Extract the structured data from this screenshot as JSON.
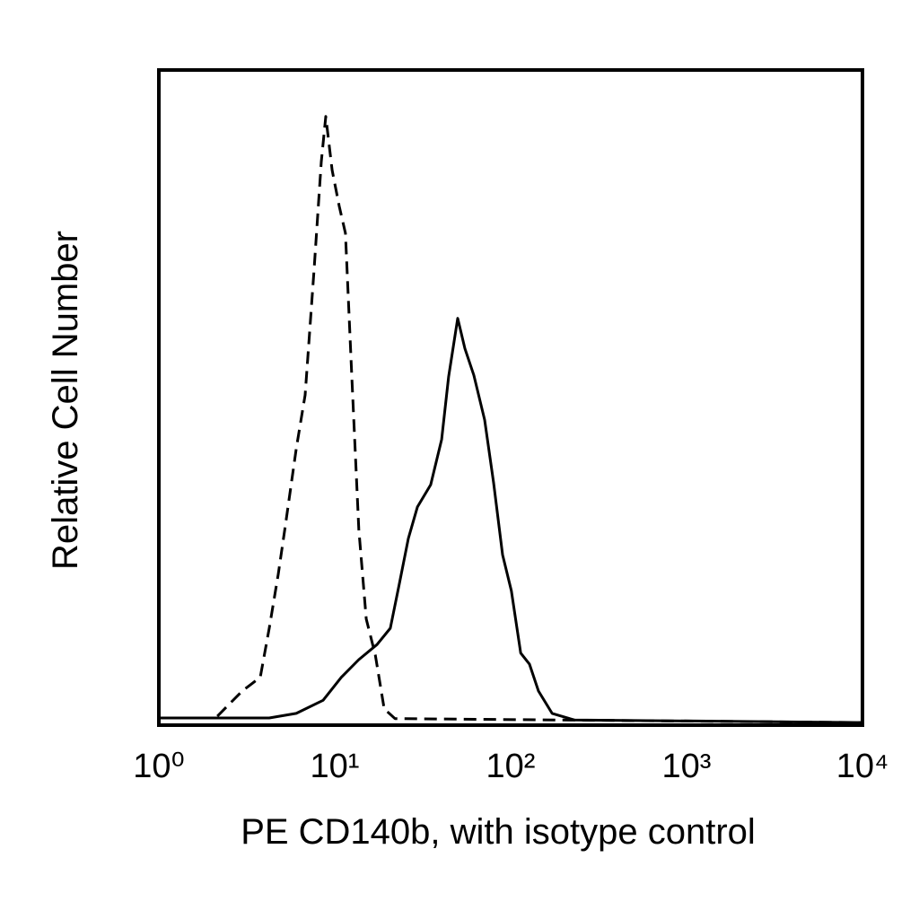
{
  "chart_data": {
    "type": "line",
    "x_label": "PE CD140b, with isotype control",
    "y_label": "Relative Cell Number",
    "xscale": "log",
    "xlim": [
      1,
      10000
    ],
    "xticks": [
      {
        "value": 1,
        "label": "10⁰"
      },
      {
        "value": 10,
        "label": "10¹"
      },
      {
        "value": 100,
        "label": "10²"
      },
      {
        "value": 1000,
        "label": "10³"
      },
      {
        "value": 10000,
        "label": "10⁴"
      }
    ],
    "ylim": [
      0,
      100
    ],
    "series": [
      {
        "color": "#000000",
        "dashed": true,
        "x": [
          1,
          2.1,
          2.98,
          3.77,
          4.24,
          4.77,
          5.24,
          6.04,
          6.79,
          7.63,
          8.38,
          8.89,
          9.66,
          10.6,
          11.5,
          12.5,
          13.7,
          15.1,
          17,
          19.1,
          22,
          9800
        ],
        "values": [
          1.1,
          1.1,
          5.2,
          7.3,
          14.8,
          23,
          30.5,
          42.2,
          50.4,
          69.6,
          86,
          92.9,
          84.7,
          79.2,
          75.1,
          53.2,
          29.9,
          16.2,
          10.7,
          2.5,
          1,
          0.4
        ]
      },
      {
        "color": "#000000",
        "dashed": false,
        "x": [
          1,
          4.24,
          6.04,
          8.58,
          10.9,
          13.7,
          17.4,
          20.7,
          23.3,
          26.2,
          29.5,
          35.1,
          40.5,
          44.4,
          50,
          54.9,
          61.8,
          71.1,
          80,
          90,
          101,
          114,
          128,
          144,
          172,
          230,
          9800
        ],
        "values": [
          1.1,
          1.1,
          1.8,
          3.8,
          7.3,
          10,
          12.3,
          14.8,
          21.6,
          28.5,
          33.3,
          36.7,
          43.6,
          53.2,
          62.1,
          57.5,
          53.4,
          46.6,
          37,
          26,
          20.5,
          11,
          9.3,
          5.2,
          1.8,
          0.8,
          0.4
        ]
      }
    ]
  }
}
